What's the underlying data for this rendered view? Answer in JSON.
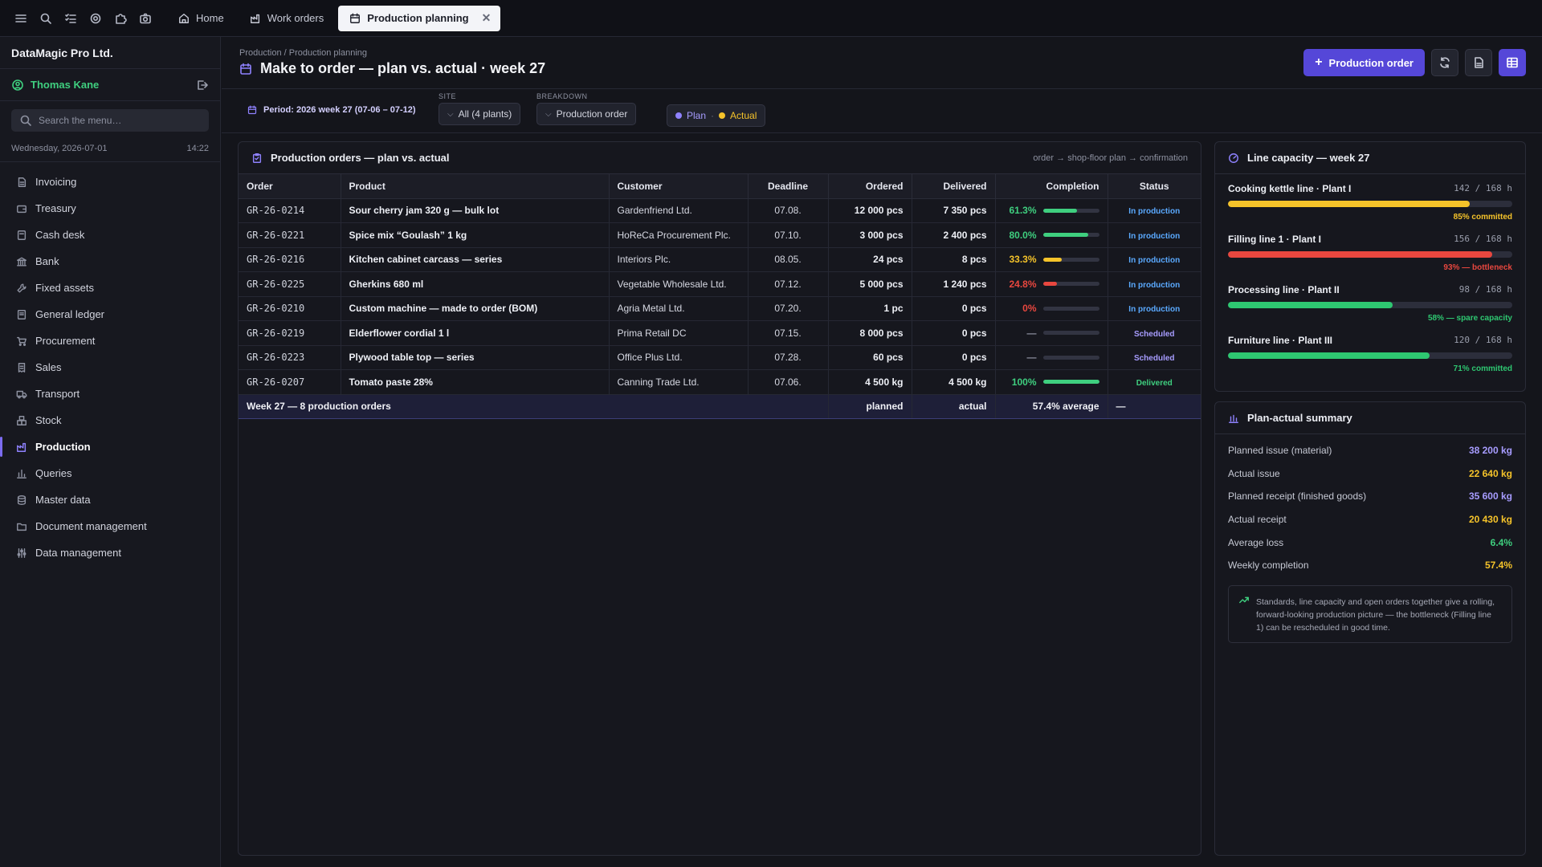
{
  "tabs": [
    {
      "label": "Home",
      "icon": "home-icon"
    },
    {
      "label": "Work orders",
      "icon": "factory-icon"
    },
    {
      "label": "Production planning",
      "icon": "calendar-icon",
      "active": true
    }
  ],
  "sidebar": {
    "company": "DataMagic Pro Ltd.",
    "user": "Thomas Kane",
    "search_placeholder": "Search the menu…",
    "date": "Wednesday, 2026-07-01",
    "time": "14:22",
    "items": [
      {
        "label": "Invoicing",
        "icon": "invoice-icon"
      },
      {
        "label": "Treasury",
        "icon": "wallet-icon"
      },
      {
        "label": "Cash desk",
        "icon": "cash-icon"
      },
      {
        "label": "Bank",
        "icon": "bank-icon"
      },
      {
        "label": "Fixed assets",
        "icon": "wrench-icon"
      },
      {
        "label": "General ledger",
        "icon": "ledger-icon"
      },
      {
        "label": "Procurement",
        "icon": "cart-icon"
      },
      {
        "label": "Sales",
        "icon": "receipt-icon"
      },
      {
        "label": "Transport",
        "icon": "truck-icon"
      },
      {
        "label": "Stock",
        "icon": "boxes-icon"
      },
      {
        "label": "Production",
        "icon": "factory-icon",
        "active": true
      },
      {
        "label": "Queries",
        "icon": "chart-icon"
      },
      {
        "label": "Master data",
        "icon": "database-icon"
      },
      {
        "label": "Document management",
        "icon": "folder-icon"
      },
      {
        "label": "Data management",
        "icon": "sliders-icon"
      }
    ]
  },
  "header": {
    "breadcrumb": "Production / Production planning",
    "title": "Make to order — plan vs. actual · week 27",
    "primary_button": "Production order"
  },
  "filters": {
    "period": "Period: 2026 week 27 (07-06 – 07-12)",
    "site_label": "SITE",
    "site_value": "All (4 plants)",
    "breakdown_label": "BREAKDOWN",
    "breakdown_value": "Production order",
    "legend_plan": "Plan",
    "legend_actual": "Actual",
    "legend_sep": "·"
  },
  "orders": {
    "title": "Production orders — plan vs. actual",
    "hint": "order → shop-floor plan → confirmation",
    "columns": [
      "Order",
      "Product",
      "Customer",
      "Deadline",
      "Ordered",
      "Delivered",
      "Completion",
      "Status"
    ],
    "rows": [
      {
        "order": "GR-26-0214",
        "product": "Sour cherry jam 320 g — bulk lot",
        "customer": "Gardenfriend Ltd.",
        "deadline": "07.08.",
        "ordered": "12 000 pcs",
        "delivered": "7 350 pcs",
        "pct": "61.3%",
        "fill": 0.613,
        "color": "#3fcf7f",
        "status": "In production",
        "st": "prod"
      },
      {
        "order": "GR-26-0221",
        "product": "Spice mix “Goulash” 1 kg",
        "customer": "HoReCa Procurement Plc.",
        "deadline": "07.10.",
        "ordered": "3 000 pcs",
        "delivered": "2 400 pcs",
        "pct": "80.0%",
        "fill": 0.8,
        "color": "#3fcf7f",
        "status": "In production",
        "st": "prod"
      },
      {
        "order": "GR-26-0216",
        "product": "Kitchen cabinet carcass — series",
        "customer": "Interiors Plc.",
        "deadline": "08.05.",
        "ordered": "24 pcs",
        "delivered": "8 pcs",
        "pct": "33.3%",
        "fill": 0.333,
        "color": "#f5c32a",
        "status": "In production",
        "st": "prod"
      },
      {
        "order": "GR-26-0225",
        "product": "Gherkins 680 ml",
        "customer": "Vegetable Wholesale Ltd.",
        "deadline": "07.12.",
        "ordered": "5 000 pcs",
        "delivered": "1 240 pcs",
        "pct": "24.8%",
        "fill": 0.248,
        "color": "#e8473f",
        "status": "In production",
        "st": "prod"
      },
      {
        "order": "GR-26-0210",
        "product": "Custom machine — made to order (BOM)",
        "customer": "Agria Metal Ltd.",
        "deadline": "07.20.",
        "ordered": "1 pc",
        "delivered": "0 pcs",
        "pct": "0%",
        "fill": 0.0,
        "color": "#e8473f",
        "status": "In production",
        "st": "prod"
      },
      {
        "order": "GR-26-0219",
        "product": "Elderflower cordial 1 l",
        "customer": "Prima Retail DC",
        "deadline": "07.15.",
        "ordered": "8 000 pcs",
        "delivered": "0 pcs",
        "pct": "—",
        "fill": 0.0,
        "color": "#8d91a0",
        "status": "Scheduled",
        "st": "sched"
      },
      {
        "order": "GR-26-0223",
        "product": "Plywood table top — series",
        "customer": "Office Plus Ltd.",
        "deadline": "07.28.",
        "ordered": "60 pcs",
        "delivered": "0 pcs",
        "pct": "—",
        "fill": 0.0,
        "color": "#8d91a0",
        "status": "Scheduled",
        "st": "sched"
      },
      {
        "order": "GR-26-0207",
        "product": "Tomato paste 28%",
        "customer": "Canning Trade Ltd.",
        "deadline": "07.06.",
        "ordered": "4 500 kg",
        "delivered": "4 500 kg",
        "pct": "100%",
        "fill": 1.0,
        "color": "#3fcf7f",
        "status": "Delivered",
        "st": "del"
      }
    ],
    "total": {
      "label": "Week 27 — 8 production orders",
      "ordered": "planned",
      "delivered": "actual",
      "completion": "57.4% average",
      "status": "—"
    }
  },
  "capacity": {
    "title": "Line capacity — week 27",
    "lines": [
      {
        "name": "Cooking kettle line · Plant I",
        "value": "142 / 168 h",
        "fill": 0.85,
        "color": "#f5c32a",
        "note": "85% committed"
      },
      {
        "name": "Filling line 1 · Plant I",
        "value": "156 / 168 h",
        "fill": 0.93,
        "color": "#e8473f",
        "note": "93% — bottleneck"
      },
      {
        "name": "Processing line · Plant II",
        "value": "98 / 168 h",
        "fill": 0.58,
        "color": "#2ec771",
        "note": "58% — spare capacity"
      },
      {
        "name": "Furniture line · Plant III",
        "value": "120 / 168 h",
        "fill": 0.71,
        "color": "#2ec771",
        "note": "71% committed"
      }
    ]
  },
  "summary": {
    "title": "Plan-actual summary",
    "rows": [
      {
        "label": "Planned issue (material)",
        "value": "38 200 kg",
        "color": "#a79cff"
      },
      {
        "label": "Actual issue",
        "value": "22 640 kg",
        "color": "#f5c32a"
      },
      {
        "label": "Planned receipt (finished goods)",
        "value": "35 600 kg",
        "color": "#a79cff"
      },
      {
        "label": "Actual receipt",
        "value": "20 430 kg",
        "color": "#f5c32a"
      },
      {
        "label": "Average loss",
        "value": "6.4%",
        "color": "#3fcf7f"
      },
      {
        "label": "Weekly completion",
        "value": "57.4%",
        "color": "#f5c32a"
      }
    ],
    "note": "Standards, line capacity and open orders together give a rolling, forward-looking production picture — the bottleneck (Filling line 1) can be rescheduled in good time."
  }
}
